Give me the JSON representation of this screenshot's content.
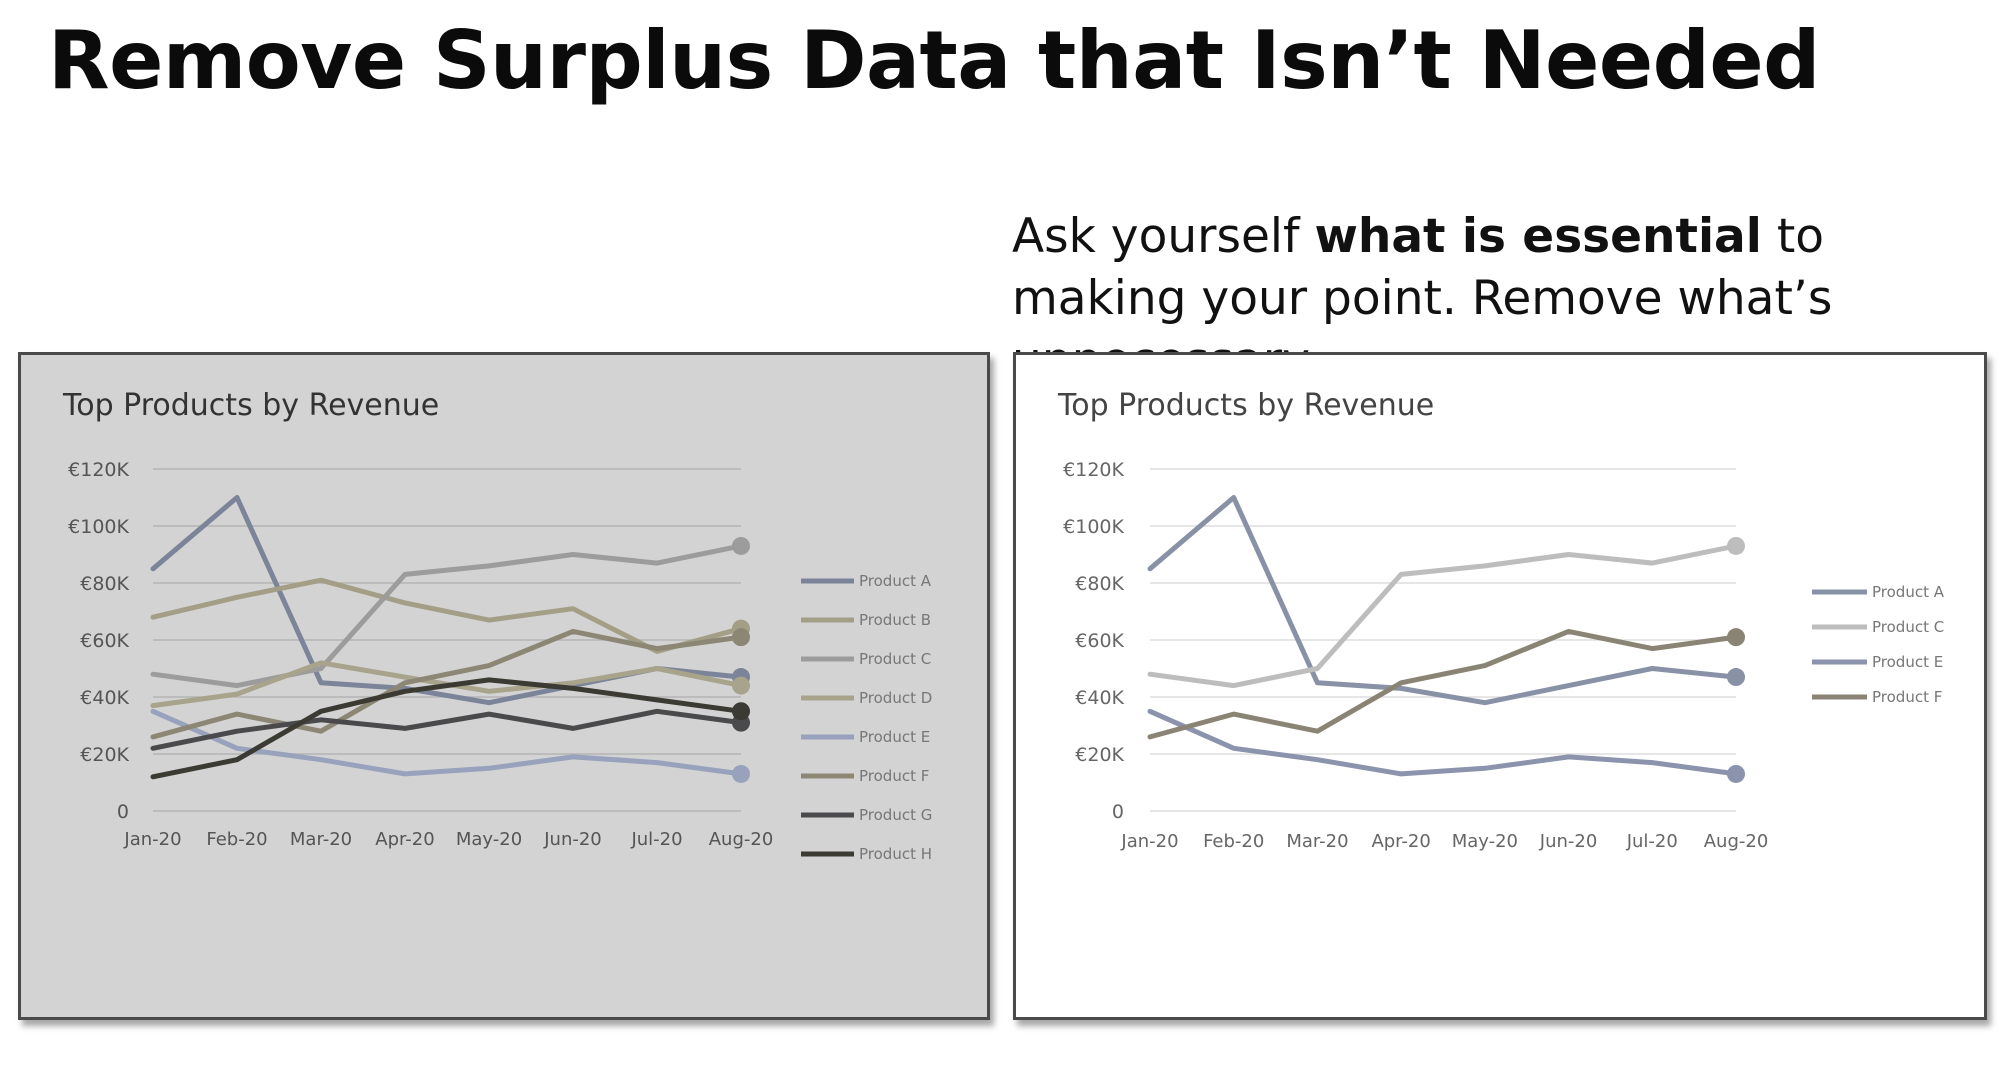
{
  "slide": {
    "title": "Remove Surplus Data that Isn’t Needed",
    "caption_pre": "Ask yourself ",
    "caption_bold": "what is essential",
    "caption_post": " to making your point. Remove what’s unnecessary."
  },
  "chart_data": [
    {
      "type": "line",
      "title": "Top Products by Revenue",
      "categories": [
        "Jan-20",
        "Feb-20",
        "Mar-20",
        "Apr-20",
        "May-20",
        "Jun-20",
        "Jul-20",
        "Aug-20"
      ],
      "ylim": [
        0,
        120000
      ],
      "yticks": [
        0,
        20000,
        40000,
        60000,
        80000,
        100000,
        120000
      ],
      "ytick_labels": [
        "0",
        "€20K",
        "€40K",
        "€60K",
        "€80K",
        "€100K",
        "€120K"
      ],
      "grid": true,
      "legend": "right",
      "background": "#d3d3d3",
      "series": [
        {
          "name": "Product A",
          "color": "#7b8499",
          "values": [
            85000,
            110000,
            45000,
            43000,
            38000,
            44000,
            50000,
            47000
          ]
        },
        {
          "name": "Product B",
          "color": "#a39f87",
          "values": [
            68000,
            75000,
            81000,
            73000,
            67000,
            71000,
            56000,
            64000
          ]
        },
        {
          "name": "Product C",
          "color": "#9c9c9c",
          "values": [
            48000,
            44000,
            50000,
            83000,
            86000,
            90000,
            87000,
            93000
          ]
        },
        {
          "name": "Product D",
          "color": "#a8a48c",
          "values": [
            37000,
            41000,
            52000,
            47000,
            42000,
            45000,
            50000,
            44000
          ]
        },
        {
          "name": "Product E",
          "color": "#98a2bc",
          "values": [
            35000,
            22000,
            18000,
            13000,
            15000,
            19000,
            17000,
            13000
          ]
        },
        {
          "name": "Product F",
          "color": "#8c8775",
          "values": [
            26000,
            34000,
            28000,
            45000,
            51000,
            63000,
            57000,
            61000
          ]
        },
        {
          "name": "Product G",
          "color": "#4a4a4c",
          "values": [
            22000,
            28000,
            32000,
            29000,
            34000,
            29000,
            35000,
            31000
          ]
        },
        {
          "name": "Product H",
          "color": "#3b3a33",
          "values": [
            12000,
            18000,
            35000,
            42000,
            46000,
            43000,
            39000,
            35000
          ]
        }
      ]
    },
    {
      "type": "line",
      "title": "Top Products by Revenue",
      "categories": [
        "Jan-20",
        "Feb-20",
        "Mar-20",
        "Apr-20",
        "May-20",
        "Jun-20",
        "Jul-20",
        "Aug-20"
      ],
      "ylim": [
        0,
        120000
      ],
      "yticks": [
        0,
        20000,
        40000,
        60000,
        80000,
        100000,
        120000
      ],
      "ytick_labels": [
        "0",
        "€20K",
        "€40K",
        "€60K",
        "€80K",
        "€100K",
        "€120K"
      ],
      "grid": true,
      "legend": "right",
      "background": "#ffffff",
      "series": [
        {
          "name": "Product A",
          "color": "#8891a6",
          "values": [
            85000,
            110000,
            45000,
            43000,
            38000,
            44000,
            50000,
            47000
          ]
        },
        {
          "name": "Product C",
          "color": "#bdbdbd",
          "values": [
            48000,
            44000,
            50000,
            83000,
            86000,
            90000,
            87000,
            93000
          ]
        },
        {
          "name": "Product E",
          "color": "#8b93ad",
          "values": [
            35000,
            22000,
            18000,
            13000,
            15000,
            19000,
            17000,
            13000
          ]
        },
        {
          "name": "Product F",
          "color": "#8a8474",
          "values": [
            26000,
            34000,
            28000,
            45000,
            51000,
            63000,
            57000,
            61000
          ]
        }
      ]
    }
  ]
}
